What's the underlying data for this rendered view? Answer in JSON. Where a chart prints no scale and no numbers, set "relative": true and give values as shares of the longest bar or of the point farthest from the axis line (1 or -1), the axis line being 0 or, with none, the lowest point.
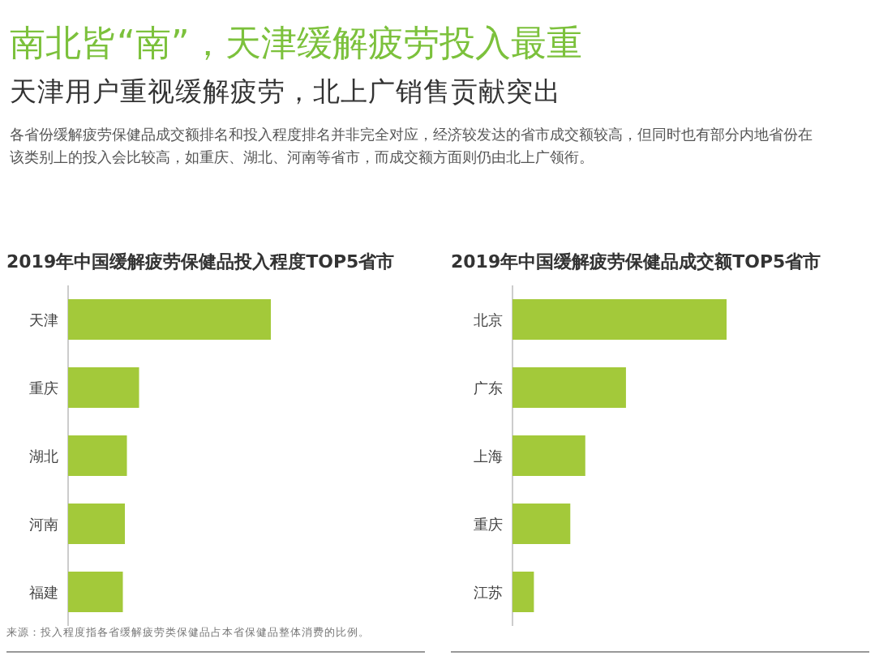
{
  "chart_data": [
    {
      "type": "other",
      "title": "南北皆“南”，天津缓解疲劳投入最重",
      "subtitle": "天津用户重视缓解疲劳，北上广销售贡献突出",
      "annotations": [
        "各省份缓解疲劳保健品成交额排名和投入程度排名并非完全对应，经济较发达的省市成交额较高，但同时也有部分内地省份在该类别上的投入会比较高，如重庆、湖北、河南等省市，而成交额方面则仍由北上广领衔。"
      ]
    },
    {
      "type": "bar",
      "orientation": "horizontal",
      "relative": true,
      "title": "2019年中国缓解疲劳保健品投入程度TOP5省市",
      "categories": [
        "天津",
        "重庆",
        "湖北",
        "河南",
        "福建"
      ],
      "values": [
        1,
        0.35,
        0.29,
        0.28,
        0.27
      ],
      "color": "#a3c93a",
      "annotations": [
        "来源：投入程度指各省缓解疲劳类保健品占本省保健品整体消费的比例。"
      ]
    },
    {
      "type": "bar",
      "orientation": "horizontal",
      "relative": true,
      "title": "2019年中国缓解疲劳保健品成交额TOP5省市",
      "categories": [
        "北京",
        "广东",
        "上海",
        "重庆",
        "江苏"
      ],
      "values": [
        1,
        0.53,
        0.34,
        0.27,
        0.1
      ],
      "color": "#a3c93a"
    }
  ]
}
